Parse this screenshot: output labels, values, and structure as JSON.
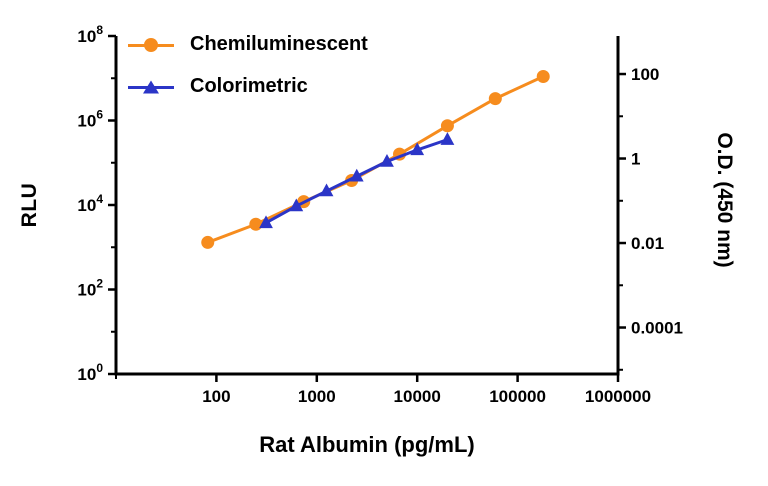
{
  "chart_data": {
    "type": "line",
    "title": "",
    "xlabel": "Rat Albumin (pg/mL)",
    "grid": false,
    "legend_position": "top-left-inside",
    "x_axis": {
      "scale": "log",
      "min": 10,
      "max": 1000000,
      "tick_values": [
        100,
        1000,
        10000,
        100000,
        1000000
      ],
      "tick_labels": [
        "100",
        "1000",
        "10000",
        "100000",
        "1000000"
      ],
      "minor_tick_values": [
        10
      ]
    },
    "left_axis": {
      "label": "RLU",
      "scale": "log",
      "log_min": 0,
      "log_max": 8,
      "tick_exponents": [
        0,
        2,
        4,
        6,
        8
      ],
      "minor_tick_exponents": [
        1,
        3,
        5,
        7
      ]
    },
    "right_axis": {
      "label": "O.D. (450 nm)",
      "scale": "log",
      "offset_decades": 5.1,
      "tick_values": [
        100,
        1,
        0.01,
        0.0001
      ],
      "tick_labels": [
        "100",
        "1",
        "0.01",
        "0.0001"
      ],
      "minor_tick_exponents": [
        -5,
        -3,
        -1,
        1
      ]
    },
    "series": [
      {
        "name": "Chemiluminescent",
        "axis": "left",
        "color": "#F68C1E",
        "marker": "circle",
        "points": [
          [
            82,
            1300
          ],
          [
            247,
            3500
          ],
          [
            741,
            12000
          ],
          [
            2222,
            38000
          ],
          [
            6667,
            160000
          ],
          [
            20000,
            750000
          ],
          [
            60000,
            3300000
          ],
          [
            180000,
            11000000
          ]
        ]
      },
      {
        "name": "Colorimetric",
        "axis": "right",
        "color": "#2B35C7",
        "marker": "triangle",
        "points": [
          [
            312,
            0.03
          ],
          [
            625,
            0.075
          ],
          [
            1250,
            0.17
          ],
          [
            2500,
            0.38
          ],
          [
            5000,
            0.85
          ],
          [
            10000,
            1.6
          ],
          [
            20000,
            2.8
          ]
        ]
      }
    ]
  }
}
